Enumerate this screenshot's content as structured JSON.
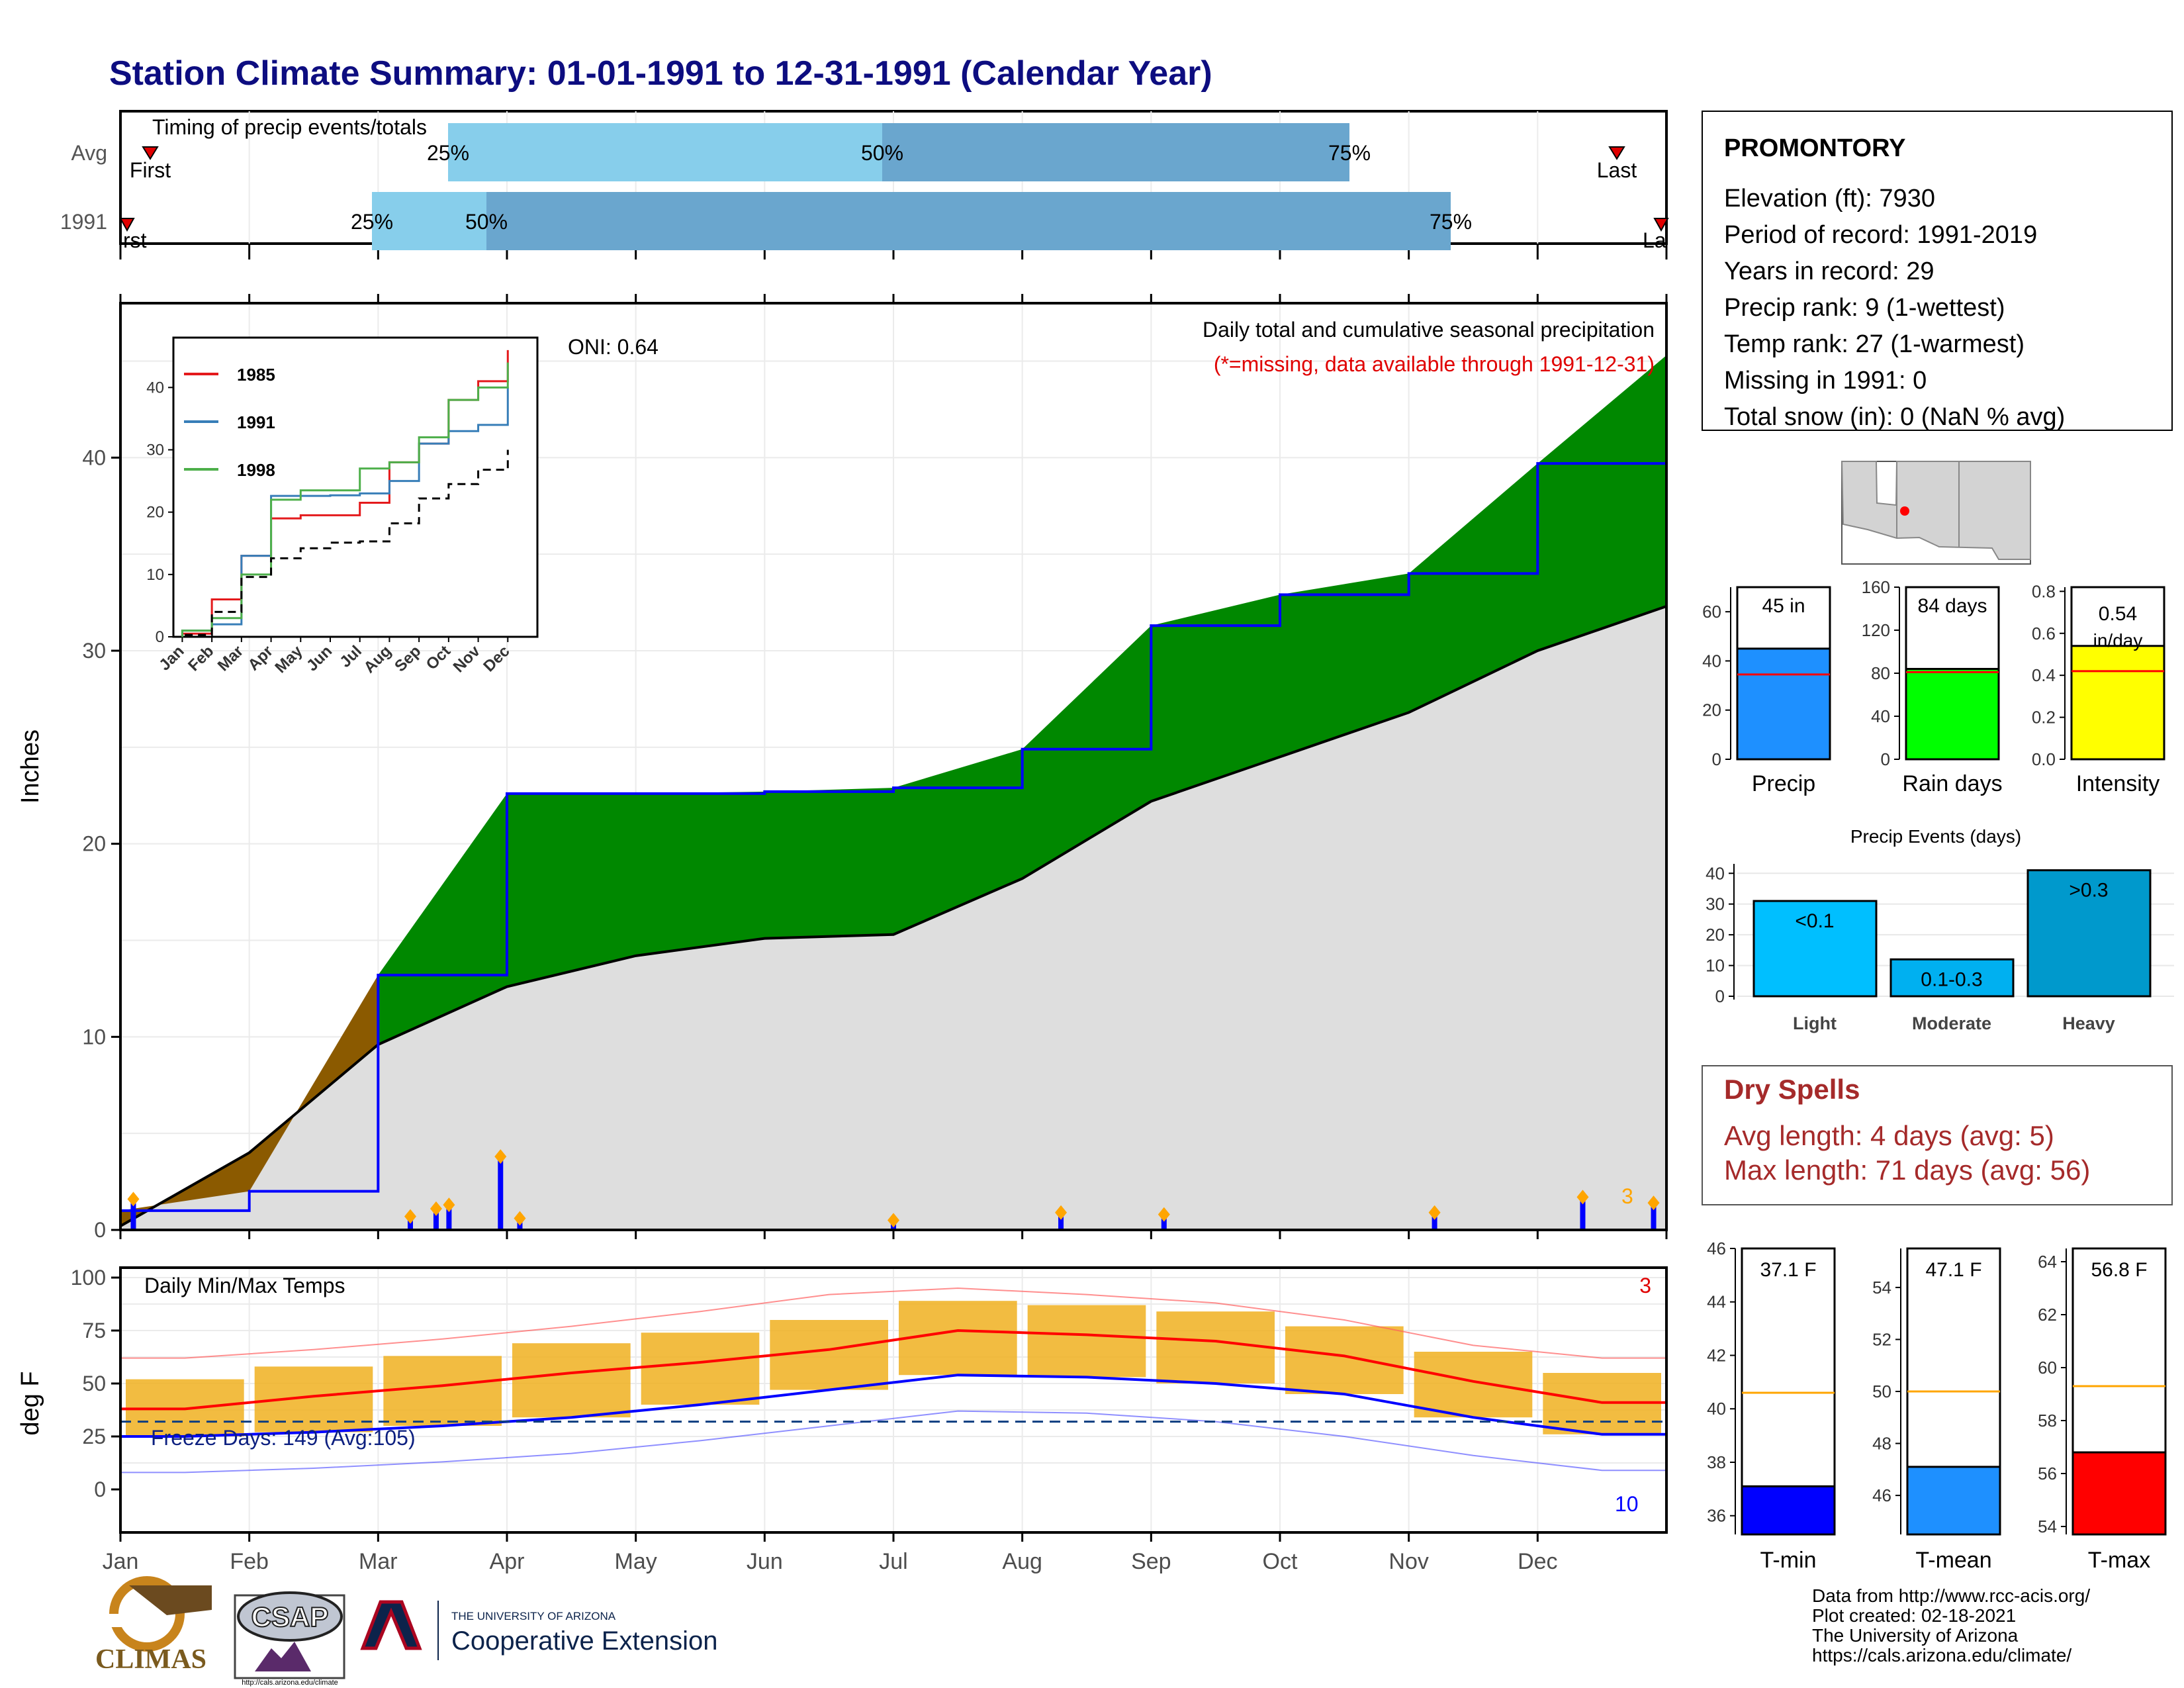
{
  "page": {
    "title": "Station Climate Summary: 01-01-1991 to 12-31-1991 (Calendar Year)",
    "colors": {
      "title": "#0d0d80",
      "precip_green": "#008800",
      "deficit_brown": "#8b5a00",
      "normal_gray": "#dedede",
      "blue": "#0000ff",
      "red": "#e00000",
      "orange": "#ffa500",
      "tempbar": "#f0b020",
      "dry_spells": "#a52a2a"
    }
  },
  "station": {
    "name": "PROMONTORY",
    "lines": [
      "Elevation (ft): 7930",
      "Period of record: 1991-2019",
      "Years in record: 29",
      "Precip rank: 9 (1-wettest)",
      "Temp rank: 27 (1-warmest)",
      "Missing in 1991: 0",
      "Total snow (in): 0 (NaN % avg)"
    ]
  },
  "timing": {
    "title": "Timing of precip events/totals",
    "rows": [
      "Avg",
      "1991"
    ],
    "avg": {
      "first": "First",
      "last": "Last",
      "p25": "25%",
      "p50": "50%",
      "p75": "75%"
    },
    "y1991": {
      "first": "rst",
      "last": "La",
      "p25": "25%",
      "p50": "50%",
      "p75": "75%"
    },
    "icons": [
      "first-marker-icon",
      "last-marker-icon"
    ]
  },
  "main": {
    "ylabel": "Inches",
    "oni": "ONI: 0.64",
    "legend_title": "Daily total and cumulative seasonal precipitation",
    "legend_note": "(*=missing, data available through 1991-12-31)",
    "corner_count": "3",
    "y_ticks": [
      "0",
      "10",
      "20",
      "30",
      "40"
    ]
  },
  "months": [
    "Jan",
    "Feb",
    "Mar",
    "Apr",
    "May",
    "Jun",
    "Jul",
    "Aug",
    "Sep",
    "Oct",
    "Nov",
    "Dec"
  ],
  "inset": {
    "y_ticks": [
      "0",
      "10",
      "20",
      "30",
      "40"
    ],
    "series_names": [
      "1985",
      "1991",
      "1998"
    ],
    "colors": [
      "#e41a1c",
      "#377eb8",
      "#4daf4a"
    ]
  },
  "temps": {
    "title": "Daily Min/Max Temps",
    "ylabel": "deg F",
    "freeze": "Freeze Days: 149 (Avg:105)",
    "count_red": "3",
    "count_blue": "10",
    "y_ticks": [
      "0",
      "25",
      "50",
      "75",
      "100"
    ]
  },
  "summary_bars": [
    {
      "label": "Precip",
      "text": "45 in",
      "value": 45,
      "avg": 34.5,
      "ymax": 70,
      "ticks": [
        "0",
        "20",
        "40",
        "60"
      ],
      "color": "#1e90ff"
    },
    {
      "label": "Rain days",
      "text": "84 days",
      "value": 84,
      "avg": 81,
      "ymax": 160,
      "ticks": [
        "0",
        "40",
        "80",
        "120",
        "160"
      ],
      "color": "#00ff00"
    },
    {
      "label": "Intensity",
      "text": "0.54 in/day",
      "value": 0.54,
      "avg": 0.42,
      "ymax": 0.82,
      "ticks": [
        "0.0",
        "0.2",
        "0.4",
        "0.6",
        "0.8"
      ],
      "color": "#ffff00"
    }
  ],
  "events": {
    "title": "Precip Events (days)",
    "categories": [
      "Light",
      "Moderate",
      "Heavy"
    ],
    "bar_labels": [
      "<0.1",
      "0.1-0.3",
      ">0.3"
    ],
    "values": [
      31,
      12,
      41
    ],
    "ticks": [
      "0",
      "10",
      "20",
      "30",
      "40"
    ],
    "colors": [
      "#00bfff",
      "#00b0f0",
      "#0099cc"
    ]
  },
  "dry_spells": {
    "title": "Dry Spells",
    "avg": "Avg length: 4 days (avg: 5)",
    "max": "Max length: 71 days (avg: 56)"
  },
  "temp_bars": [
    {
      "label": "T-min",
      "text": "37.1 F",
      "value": 37.1,
      "avg": 40.6,
      "ymin": 35.3,
      "ymax": 46,
      "ticks": [
        "36",
        "38",
        "40",
        "42",
        "44",
        "46"
      ],
      "color": "#0000ff"
    },
    {
      "label": "T-mean",
      "text": "47.1 F",
      "value": 47.1,
      "avg": 50,
      "ymin": 44.5,
      "ymax": 55.5,
      "ticks": [
        "46",
        "48",
        "50",
        "52",
        "54"
      ],
      "color": "#1e90ff"
    },
    {
      "label": "T-max",
      "text": "56.8 F",
      "value": 56.8,
      "avg": 59.3,
      "ymin": 53.7,
      "ymax": 64.5,
      "ticks": [
        "54",
        "56",
        "58",
        "60",
        "62",
        "64"
      ],
      "color": "#ff0000"
    }
  ],
  "footer": {
    "lines": [
      "Data from http://www.rcc-acis.org/",
      "Plot created: 02-18-2021",
      "The University of Arizona",
      "https://cals.arizona.edu/climate/"
    ],
    "logos": {
      "climas": "CLIMAS",
      "csap": "CSAP",
      "ua_small": "THE UNIVERSITY OF ARIZONA",
      "ua_big": "Cooperative Extension",
      "csap_url": "http://cals.arizona.edu/climate"
    }
  },
  "chart_data": [
    {
      "type": "area",
      "title": "Daily total and cumulative seasonal precipitation",
      "ylabel": "Inches",
      "ylim": [
        0,
        48
      ],
      "x": [
        "Jan",
        "Feb",
        "Mar",
        "Apr",
        "May",
        "Jun",
        "Jul",
        "Aug",
        "Sep",
        "Oct",
        "Nov",
        "Dec"
      ],
      "series": [
        {
          "values": [
            1.0,
            2.0,
            13.2,
            22.6,
            22.6,
            22.7,
            22.9,
            24.9,
            31.3,
            32.9,
            34.0,
            39.7
          ]
        },
        {
          "values": [
            0.2,
            4.0,
            9.6,
            12.6,
            14.2,
            15.1,
            15.3,
            18.2,
            22.2,
            24.5,
            26.8,
            30.0
          ]
        }
      ],
      "daily_precip": [
        {
          "x": "Jan",
          "y": 1.6
        },
        {
          "x": "Mar",
          "y": 3.8
        },
        {
          "x": "Mar",
          "y": 0.7
        },
        {
          "x": "Mar",
          "y": 1.1
        },
        {
          "x": "Mar",
          "y": 1.3
        },
        {
          "x": "Apr",
          "y": 0.6
        },
        {
          "x": "Jul",
          "y": 0.5
        },
        {
          "x": "Aug",
          "y": 0.9
        },
        {
          "x": "Sep",
          "y": 0.8
        },
        {
          "x": "Nov",
          "y": 0.9
        },
        {
          "x": "Dec",
          "y": 1.7
        },
        {
          "x": "Dec",
          "y": 1.4
        }
      ]
    },
    {
      "type": "line",
      "xlabel": "",
      "ylim": [
        0,
        48
      ],
      "x": [
        "Jan",
        "Feb",
        "Mar",
        "Apr",
        "May",
        "Jun",
        "Jul",
        "Aug",
        "Sep",
        "Oct",
        "Nov",
        "Dec"
      ],
      "series": [
        {
          "name": "1985",
          "values": [
            0.5,
            6,
            13,
            19,
            19.5,
            19.5,
            21.5,
            28,
            31,
            38,
            41,
            46
          ]
        },
        {
          "name": "1991",
          "values": [
            1,
            2,
            13,
            22.6,
            22.6,
            22.7,
            23,
            25,
            31,
            33,
            34,
            40
          ]
        },
        {
          "name": "1998",
          "values": [
            1,
            3,
            10,
            22,
            23.5,
            23.5,
            27,
            28,
            32,
            38,
            40,
            44
          ]
        },
        {
          "values": [
            0.3,
            4,
            9.6,
            12.6,
            14.2,
            15.1,
            15.3,
            18.2,
            22.2,
            24.5,
            26.8,
            30
          ]
        }
      ]
    },
    {
      "type": "line",
      "title": "Daily Min/Max Temps",
      "ylabel": "deg F",
      "ylim": [
        -15,
        105
      ],
      "x": [
        "Jan",
        "Feb",
        "Mar",
        "Apr",
        "May",
        "Jun",
        "Jul",
        "Aug",
        "Sep",
        "Oct",
        "Nov",
        "Dec"
      ],
      "series": [
        {
          "values": [
            38,
            44,
            49,
            55,
            60,
            66,
            75,
            73,
            70,
            63,
            51,
            41
          ]
        },
        {
          "values": [
            25,
            27,
            30,
            34,
            40,
            47,
            54,
            53,
            50,
            45,
            34,
            26
          ]
        },
        {
          "values": [
            62,
            66,
            71,
            77,
            84,
            92,
            95,
            92,
            88,
            80,
            68,
            62
          ]
        },
        {
          "values": [
            8,
            10,
            13,
            17,
            23,
            30,
            37,
            36,
            32,
            25,
            16,
            9
          ]
        }
      ],
      "freeze_line": 32
    },
    {
      "type": "bar",
      "categories": [
        "Precip",
        "Rain days",
        "Intensity"
      ],
      "values": [
        45,
        84,
        0.54
      ]
    },
    {
      "type": "bar",
      "title": "Precip Events (days)",
      "categories": [
        "Light",
        "Moderate",
        "Heavy"
      ],
      "values": [
        31,
        12,
        41
      ]
    },
    {
      "type": "bar",
      "categories": [
        "T-min",
        "T-mean",
        "T-max"
      ],
      "values": [
        37.1,
        47.1,
        56.8
      ]
    }
  ]
}
